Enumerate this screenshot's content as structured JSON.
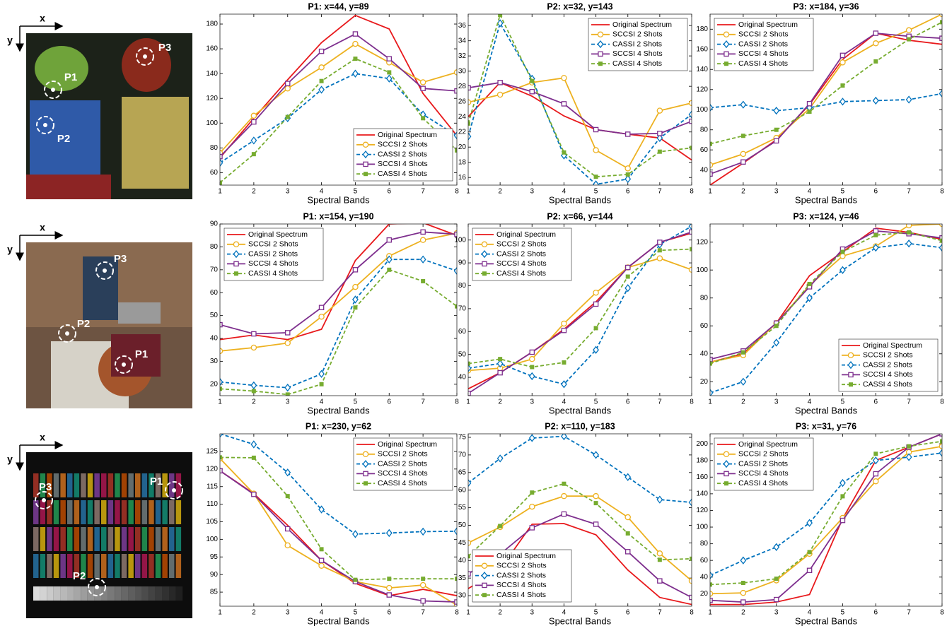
{
  "images": [
    {
      "x_label": "x",
      "y_label": "y",
      "points": [
        "P1",
        "P2",
        "P3"
      ]
    },
    {
      "x_label": "x",
      "y_label": "y",
      "points": [
        "P1",
        "P2",
        "P3"
      ]
    },
    {
      "x_label": "x",
      "y_label": "y",
      "points": [
        "P1",
        "P2",
        "P3"
      ]
    }
  ],
  "chart_data": [
    {
      "type": "line",
      "title": "P1: x=44, y=89",
      "xlabel": "Spectral Bands",
      "x": [
        1,
        2,
        3,
        4,
        5,
        6,
        7,
        8
      ],
      "xlim": [
        1,
        8
      ],
      "xticks": [
        1,
        2,
        3,
        4,
        5,
        6,
        7,
        8
      ],
      "ylim": [
        50,
        188
      ],
      "yticks": [
        60,
        80,
        100,
        120,
        140,
        160,
        180
      ],
      "legend": "lower right",
      "series": [
        {
          "name": "Original Spectrum",
          "color": "#e8191c",
          "marker": "none",
          "dash": false,
          "values": [
            72,
            104,
            135,
            165,
            187,
            176,
            124,
            90
          ]
        },
        {
          "name": "SCCSI 2 Shots",
          "color": "#edb120",
          "marker": "circle",
          "dash": false,
          "values": [
            76,
            106,
            128,
            145,
            164,
            149,
            133,
            141
          ]
        },
        {
          "name": "CASSI 2 Shots",
          "color": "#0072bd",
          "marker": "diamond",
          "dash": true,
          "values": [
            68,
            86,
            104,
            127,
            140,
            136,
            107,
            90
          ]
        },
        {
          "name": "SCCSI 4 Shots",
          "color": "#7e2f8e",
          "marker": "square",
          "dash": false,
          "values": [
            73,
            101,
            132,
            158,
            172,
            152,
            128,
            126
          ]
        },
        {
          "name": "CASSI 4 Shots",
          "color": "#77ac30",
          "marker": "filled-square",
          "dash": true,
          "values": [
            52,
            75,
            105,
            134,
            152,
            141,
            104,
            78
          ]
        }
      ]
    },
    {
      "type": "line",
      "title": "P2: x=32, y=143",
      "xlabel": "Spectral Bands",
      "x": [
        1,
        2,
        3,
        4,
        5,
        6,
        7,
        8
      ],
      "xlim": [
        1,
        8
      ],
      "xticks": [
        1,
        2,
        3,
        4,
        5,
        6,
        7,
        8
      ],
      "ylim": [
        15,
        37.5
      ],
      "yticks": [
        16,
        18,
        20,
        22,
        24,
        26,
        28,
        30,
        32,
        34,
        36
      ],
      "legend": "upper right",
      "series": [
        {
          "name": "Original Spectrum",
          "color": "#e8191c",
          "marker": "none",
          "dash": false,
          "values": [
            24,
            28.5,
            26.7,
            24.1,
            22.3,
            21.7,
            21.2,
            18.3
          ]
        },
        {
          "name": "SCCSI 2 Shots",
          "color": "#edb120",
          "marker": "circle",
          "dash": false,
          "values": [
            25.9,
            26.9,
            28.5,
            29.1,
            19.6,
            17.2,
            24.8,
            25.8
          ]
        },
        {
          "name": "CASSI 2 Shots",
          "color": "#0072bd",
          "marker": "diamond",
          "dash": true,
          "values": [
            21.4,
            36.3,
            29,
            18.9,
            15.1,
            15.8,
            21.2,
            24.3
          ]
        },
        {
          "name": "SCCSI 4 Shots",
          "color": "#7e2f8e",
          "marker": "square",
          "dash": false,
          "values": [
            27.8,
            28.5,
            27.3,
            25.7,
            22.3,
            21.7,
            21.8,
            23.4
          ]
        },
        {
          "name": "CASSI 4 Shots",
          "color": "#77ac30",
          "marker": "filled-square",
          "dash": true,
          "values": [
            23.1,
            37.4,
            28.7,
            19.3,
            16.1,
            16.4,
            19.4,
            19.9
          ]
        }
      ]
    },
    {
      "type": "line",
      "title": "P3: x=184, y=36",
      "xlabel": "Spectral Bands",
      "x": [
        1,
        2,
        3,
        4,
        5,
        6,
        7,
        8
      ],
      "xlim": [
        1,
        8
      ],
      "xticks": [
        1,
        2,
        3,
        4,
        5,
        6,
        7,
        8
      ],
      "ylim": [
        25,
        195
      ],
      "yticks": [
        40,
        60,
        80,
        100,
        120,
        140,
        160,
        180
      ],
      "legend": "upper left",
      "series": [
        {
          "name": "Original Spectrum",
          "color": "#e8191c",
          "marker": "none",
          "dash": false,
          "values": [
            25,
            47,
            70,
            105,
            150,
            176,
            169,
            165
          ]
        },
        {
          "name": "SCCSI 2 Shots",
          "color": "#edb120",
          "marker": "circle",
          "dash": false,
          "values": [
            45,
            56,
            72,
            101,
            147,
            166,
            179,
            195
          ]
        },
        {
          "name": "CASSI 2 Shots",
          "color": "#0072bd",
          "marker": "diamond",
          "dash": true,
          "values": [
            102,
            105,
            99,
            102,
            108,
            109,
            110,
            116
          ]
        },
        {
          "name": "SCCSI 4 Shots",
          "color": "#7e2f8e",
          "marker": "square",
          "dash": false,
          "values": [
            36,
            48,
            69,
            106,
            154,
            176,
            173,
            171
          ]
        },
        {
          "name": "CASSI 4 Shots",
          "color": "#77ac30",
          "marker": "filled-square",
          "dash": true,
          "values": [
            66,
            74,
            80,
            98,
            124,
            148,
            170,
            187
          ]
        }
      ]
    },
    {
      "type": "line",
      "title": "P1: x=154, y=190",
      "xlabel": "Spectral Bands",
      "x": [
        1,
        2,
        3,
        4,
        5,
        6,
        7,
        8
      ],
      "xlim": [
        1,
        8
      ],
      "xticks": [
        1,
        2,
        3,
        4,
        5,
        6,
        7,
        8
      ],
      "ylim": [
        15,
        90
      ],
      "yticks": [
        20,
        30,
        40,
        50,
        60,
        70,
        80,
        90
      ],
      "legend": "upper left",
      "series": [
        {
          "name": "Original Spectrum",
          "color": "#e8191c",
          "marker": "none",
          "dash": false,
          "values": [
            39.5,
            41.5,
            39.5,
            44,
            74,
            90,
            90.5,
            85
          ]
        },
        {
          "name": "SCCSI 2 Shots",
          "color": "#edb120",
          "marker": "circle",
          "dash": false,
          "values": [
            34.5,
            36,
            38,
            49.5,
            62.5,
            76,
            83,
            86
          ]
        },
        {
          "name": "CASSI 2 Shots",
          "color": "#0072bd",
          "marker": "diamond",
          "dash": true,
          "values": [
            21,
            19.5,
            18.5,
            24.5,
            57,
            74.5,
            74.5,
            69.5
          ]
        },
        {
          "name": "SCCSI 4 Shots",
          "color": "#7e2f8e",
          "marker": "square",
          "dash": false,
          "values": [
            46,
            42,
            42.5,
            53.5,
            70,
            83,
            86.5,
            85.5
          ]
        },
        {
          "name": "CASSI 4 Shots",
          "color": "#77ac30",
          "marker": "filled-square",
          "dash": true,
          "values": [
            18,
            17,
            15.5,
            20,
            53.5,
            70,
            65,
            54
          ]
        }
      ]
    },
    {
      "type": "line",
      "title": "P2: x=66, y=144",
      "xlabel": "Spectral Bands",
      "x": [
        1,
        2,
        3,
        4,
        5,
        6,
        7,
        8
      ],
      "xlim": [
        1,
        8
      ],
      "xticks": [
        1,
        2,
        3,
        4,
        5,
        6,
        7,
        8
      ],
      "ylim": [
        32,
        107
      ],
      "yticks": [
        40,
        50,
        60,
        70,
        80,
        90,
        100
      ],
      "legend": "upper left",
      "series": [
        {
          "name": "Original Spectrum",
          "color": "#e8191c",
          "marker": "none",
          "dash": false,
          "values": [
            35,
            42,
            51,
            61,
            73,
            88,
            99,
            103
          ]
        },
        {
          "name": "SCCSI 2 Shots",
          "color": "#edb120",
          "marker": "circle",
          "dash": false,
          "values": [
            43,
            44,
            48,
            63.5,
            77,
            88,
            92,
            87
          ]
        },
        {
          "name": "CASSI 2 Shots",
          "color": "#0072bd",
          "marker": "diamond",
          "dash": true,
          "values": [
            44,
            46,
            40.5,
            37,
            52,
            79,
            98,
            106
          ]
        },
        {
          "name": "SCCSI 4 Shots",
          "color": "#7e2f8e",
          "marker": "square",
          "dash": false,
          "values": [
            33,
            42,
            51,
            60.5,
            72,
            88,
            99,
            103.5
          ]
        },
        {
          "name": "CASSI 4 Shots",
          "color": "#77ac30",
          "marker": "filled-square",
          "dash": true,
          "values": [
            46,
            48,
            44.5,
            46.5,
            61.5,
            84,
            95.5,
            96
          ]
        }
      ]
    },
    {
      "type": "line",
      "title": "P3: x=124, y=46",
      "xlabel": "Spectral Bands",
      "x": [
        1,
        2,
        3,
        4,
        5,
        6,
        7,
        8
      ],
      "xlim": [
        1,
        8
      ],
      "xticks": [
        1,
        2,
        3,
        4,
        5,
        6,
        7,
        8
      ],
      "ylim": [
        10,
        133
      ],
      "yticks": [
        20,
        40,
        60,
        80,
        100,
        120
      ],
      "legend": "lower right",
      "series": [
        {
          "name": "Original Spectrum",
          "color": "#e8191c",
          "marker": "none",
          "dash": false,
          "values": [
            34,
            40,
            62,
            96,
            113,
            130,
            127,
            122
          ]
        },
        {
          "name": "SCCSI 2 Shots",
          "color": "#edb120",
          "marker": "circle",
          "dash": false,
          "values": [
            34,
            39,
            62,
            89,
            110,
            117,
            132,
            133
          ]
        },
        {
          "name": "CASSI 2 Shots",
          "color": "#0072bd",
          "marker": "diamond",
          "dash": true,
          "values": [
            12,
            20,
            48,
            80,
            100,
            116,
            119,
            116
          ]
        },
        {
          "name": "SCCSI 4 Shots",
          "color": "#7e2f8e",
          "marker": "square",
          "dash": false,
          "values": [
            36,
            42,
            62,
            88,
            115,
            128,
            126,
            123
          ]
        },
        {
          "name": "CASSI 4 Shots",
          "color": "#77ac30",
          "marker": "filled-square",
          "dash": true,
          "values": [
            33,
            41,
            60,
            90,
            113,
            125,
            127,
            121
          ]
        }
      ]
    },
    {
      "type": "line",
      "title": "P1: x=230, y=62",
      "xlabel": "Spectral Bands",
      "x": [
        1,
        2,
        3,
        4,
        5,
        6,
        7,
        8
      ],
      "xlim": [
        1,
        8
      ],
      "xticks": [
        1,
        2,
        3,
        4,
        5,
        6,
        7,
        8
      ],
      "ylim": [
        81,
        130
      ],
      "yticks": [
        85,
        90,
        95,
        100,
        105,
        110,
        115,
        120,
        125
      ],
      "legend": "upper right",
      "series": [
        {
          "name": "Original Spectrum",
          "color": "#e8191c",
          "marker": "none",
          "dash": false,
          "values": [
            119.5,
            113,
            104,
            94,
            87.5,
            84,
            85.8,
            84
          ]
        },
        {
          "name": "SCCSI 2 Shots",
          "color": "#edb120",
          "marker": "circle",
          "dash": false,
          "values": [
            123,
            113,
            98.3,
            92.5,
            88,
            86.2,
            87,
            81.3
          ]
        },
        {
          "name": "CASSI 2 Shots",
          "color": "#0072bd",
          "marker": "diamond",
          "dash": true,
          "values": [
            130,
            127,
            119,
            108.5,
            101.5,
            101.8,
            102.2,
            102.3
          ]
        },
        {
          "name": "SCCSI 4 Shots",
          "color": "#7e2f8e",
          "marker": "square",
          "dash": false,
          "values": [
            119.5,
            112.8,
            103,
            94,
            88,
            84.2,
            82.5,
            82.2
          ]
        },
        {
          "name": "CASSI 4 Shots",
          "color": "#77ac30",
          "marker": "filled-square",
          "dash": true,
          "values": [
            123.3,
            123.2,
            112.3,
            97.2,
            88.5,
            88.8,
            88.8,
            88.8
          ]
        }
      ]
    },
    {
      "type": "line",
      "title": "P2: x=110, y=183",
      "xlabel": "Spectral Bands",
      "x": [
        1,
        2,
        3,
        4,
        5,
        6,
        7,
        8
      ],
      "xlim": [
        1,
        8
      ],
      "xticks": [
        1,
        2,
        3,
        4,
        5,
        6,
        7,
        8
      ],
      "ylim": [
        27,
        76
      ],
      "yticks": [
        30,
        35,
        40,
        45,
        50,
        55,
        60,
        65,
        70,
        75
      ],
      "legend": "lower left",
      "series": [
        {
          "name": "Original Spectrum",
          "color": "#e8191c",
          "marker": "none",
          "dash": false,
          "values": [
            32,
            37.5,
            50.3,
            50.5,
            47.3,
            37.3,
            29.5,
            27.5
          ]
        },
        {
          "name": "SCCSI 2 Shots",
          "color": "#edb120",
          "marker": "circle",
          "dash": false,
          "values": [
            45,
            49.5,
            55.3,
            58.3,
            58.3,
            52.3,
            42,
            34.2
          ]
        },
        {
          "name": "CASSI 2 Shots",
          "color": "#0072bd",
          "marker": "diamond",
          "dash": true,
          "values": [
            62,
            69,
            74.8,
            75.3,
            70,
            63.7,
            57.3,
            56.5
          ]
        },
        {
          "name": "SCCSI 4 Shots",
          "color": "#7e2f8e",
          "marker": "square",
          "dash": false,
          "values": [
            36.2,
            41.8,
            49.3,
            53.2,
            50.3,
            42.5,
            34.2,
            29.5
          ]
        },
        {
          "name": "CASSI 4 Shots",
          "color": "#77ac30",
          "marker": "filled-square",
          "dash": true,
          "values": [
            41.2,
            49.8,
            59.3,
            61.8,
            56.3,
            47.7,
            40.2,
            40.5
          ]
        }
      ]
    },
    {
      "type": "line",
      "title": "P3: x=31, y=76",
      "xlabel": "Spectral Bands",
      "x": [
        1,
        2,
        3,
        4,
        5,
        6,
        7,
        8
      ],
      "xlim": [
        1,
        8
      ],
      "xticks": [
        1,
        2,
        3,
        4,
        5,
        6,
        7,
        8
      ],
      "ylim": [
        5,
        212
      ],
      "yticks": [
        20,
        40,
        60,
        80,
        100,
        120,
        140,
        160,
        180,
        200
      ],
      "legend": "upper left",
      "series": [
        {
          "name": "Original Spectrum",
          "color": "#e8191c",
          "marker": "none",
          "dash": false,
          "values": [
            7,
            7,
            10,
            19,
            110,
            180,
            196,
            212
          ]
        },
        {
          "name": "SCCSI 2 Shots",
          "color": "#edb120",
          "marker": "circle",
          "dash": false,
          "values": [
            20,
            21,
            36,
            68,
            111,
            155,
            190,
            197
          ]
        },
        {
          "name": "CASSI 2 Shots",
          "color": "#0072bd",
          "marker": "diamond",
          "dash": true,
          "values": [
            42,
            60,
            76,
            105,
            153,
            180,
            184,
            189
          ]
        },
        {
          "name": "SCCSI 4 Shots",
          "color": "#7e2f8e",
          "marker": "square",
          "dash": false,
          "values": [
            12,
            10,
            13,
            48,
            108,
            164,
            196,
            212
          ]
        },
        {
          "name": "CASSI 4 Shots",
          "color": "#77ac30",
          "marker": "filled-square",
          "dash": true,
          "values": [
            31,
            33,
            38,
            70,
            137,
            188,
            197,
            203
          ]
        }
      ]
    }
  ]
}
